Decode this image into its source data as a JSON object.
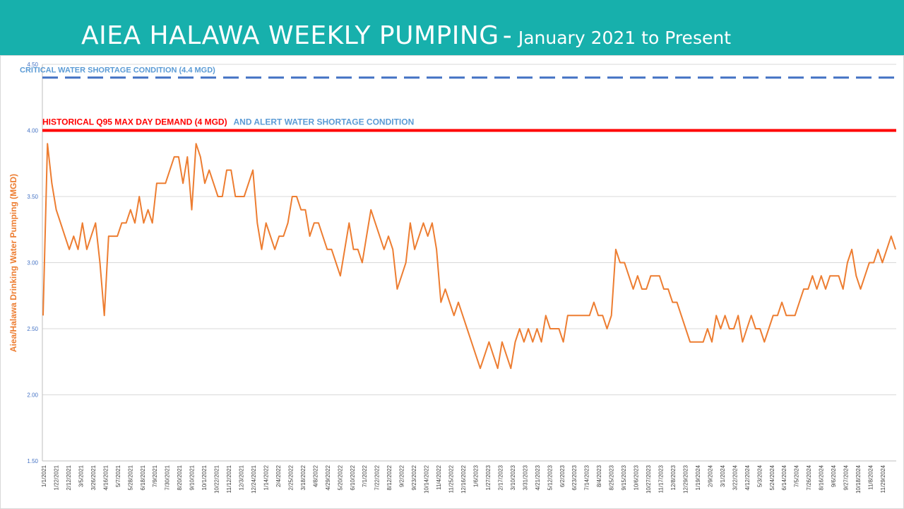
{
  "header": {
    "title_main": "AIEA HALAWA WEEKLY PUMPING",
    "title_dash": "-",
    "title_sub": "January 2021 to Present"
  },
  "chart_data": {
    "type": "line",
    "title": "AIEA HALAWA WEEKLY PUMPING - January 2021 to Present",
    "ylabel": "Aiea/Halawa Drinking Water Pumping (MGD)",
    "xlabel": "",
    "ylim": [
      1.5,
      4.5
    ],
    "yticks": [
      "1.50",
      "2.00",
      "2.50",
      "3.00",
      "3.50",
      "4.00",
      "4.50"
    ],
    "grid": true,
    "colors": {
      "series": "#ed7d31",
      "critical": "#4472c4",
      "historical": "#ff0000",
      "alert": "#5b9bd5"
    },
    "reference_lines": [
      {
        "label": "CRITICAL WATER SHORTAGE CONDITION (4.4 MGD)",
        "value": 4.4,
        "style": "dashed"
      },
      {
        "label": "HISTORICAL Q95 MAX DAY DEMAND (4 MGD)",
        "label2": "AND ALERT WATER SHORTAGE CONDITION",
        "value": 4.0,
        "style": "solid"
      }
    ],
    "x_tick_labels": [
      "1/1/2021",
      "1/22/2021",
      "2/12/2021",
      "3/5/2021",
      "3/26/2021",
      "4/16/2021",
      "5/7/2021",
      "5/28/2021",
      "6/18/2021",
      "7/9/2021",
      "7/30/2021",
      "8/20/2021",
      "9/10/2021",
      "10/1/2021",
      "10/22/2021",
      "11/12/2021",
      "12/3/2021",
      "12/24/2021",
      "1/14/2022",
      "2/4/2022",
      "2/25/2022",
      "3/18/2022",
      "4/8/2022",
      "4/29/2022",
      "5/20/2022",
      "6/10/2022",
      "7/1/2022",
      "7/22/2022",
      "8/12/2022",
      "9/2/2022",
      "9/23/2022",
      "10/14/2022",
      "11/4/2022",
      "11/25/2022",
      "12/16/2022",
      "1/6/2023",
      "1/27/2023",
      "2/17/2023",
      "3/10/2023",
      "3/31/2023",
      "4/21/2023",
      "5/12/2023",
      "6/2/2023",
      "6/23/2023",
      "7/14/2023",
      "8/4/2023",
      "8/25/2023",
      "9/15/2023",
      "10/6/2023",
      "10/27/2023",
      "11/17/2023",
      "12/8/2023",
      "12/29/2023",
      "1/19/2024",
      "2/9/2024",
      "3/1/2024",
      "3/22/2024",
      "4/12/2024",
      "5/3/2024",
      "5/24/2024",
      "6/14/2024",
      "7/5/2024",
      "7/26/2024",
      "8/16/2024",
      "9/6/2024",
      "9/27/2024",
      "10/18/2024",
      "11/8/2024",
      "11/29/2024"
    ],
    "series": [
      {
        "name": "",
        "values": [
          2.6,
          3.9,
          3.6,
          3.4,
          3.3,
          3.2,
          3.1,
          3.2,
          3.1,
          3.3,
          3.1,
          3.2,
          3.3,
          3.0,
          2.6,
          3.2,
          3.2,
          3.2,
          3.3,
          3.3,
          3.4,
          3.3,
          3.5,
          3.3,
          3.4,
          3.3,
          3.6,
          3.6,
          3.6,
          3.7,
          3.8,
          3.8,
          3.6,
          3.8,
          3.4,
          3.9,
          3.8,
          3.6,
          3.7,
          3.6,
          3.5,
          3.5,
          3.7,
          3.7,
          3.5,
          3.5,
          3.5,
          3.6,
          3.7,
          3.3,
          3.1,
          3.3,
          3.2,
          3.1,
          3.2,
          3.2,
          3.3,
          3.5,
          3.5,
          3.4,
          3.4,
          3.2,
          3.3,
          3.3,
          3.2,
          3.1,
          3.1,
          3.0,
          2.9,
          3.1,
          3.3,
          3.1,
          3.1,
          3.0,
          3.2,
          3.4,
          3.3,
          3.2,
          3.1,
          3.2,
          3.1,
          2.8,
          2.9,
          3.0,
          3.3,
          3.1,
          3.2,
          3.3,
          3.2,
          3.3,
          3.1,
          2.7,
          2.8,
          2.7,
          2.6,
          2.7,
          2.6,
          2.5,
          2.4,
          2.3,
          2.2,
          2.3,
          2.4,
          2.3,
          2.2,
          2.4,
          2.3,
          2.2,
          2.4,
          2.5,
          2.4,
          2.5,
          2.4,
          2.5,
          2.4,
          2.6,
          2.5,
          2.5,
          2.5,
          2.4,
          2.6,
          2.6,
          2.6,
          2.6,
          2.6,
          2.6,
          2.7,
          2.6,
          2.6,
          2.5,
          2.6,
          3.1,
          3.0,
          3.0,
          2.9,
          2.8,
          2.9,
          2.8,
          2.8,
          2.9,
          2.9,
          2.9,
          2.8,
          2.8,
          2.7,
          2.7,
          2.6,
          2.5,
          2.4,
          2.4,
          2.4,
          2.4,
          2.5,
          2.4,
          2.6,
          2.5,
          2.6,
          2.5,
          2.5,
          2.6,
          2.4,
          2.5,
          2.6,
          2.5,
          2.5,
          2.4,
          2.5,
          2.6,
          2.6,
          2.7,
          2.6,
          2.6,
          2.6,
          2.7,
          2.8,
          2.8,
          2.9,
          2.8,
          2.9,
          2.8,
          2.9,
          2.9,
          2.9,
          2.8,
          3.0,
          3.1,
          2.9,
          2.8,
          2.9,
          3.0,
          3.0,
          3.1,
          3.0,
          3.1,
          3.2,
          3.1
        ]
      }
    ]
  }
}
